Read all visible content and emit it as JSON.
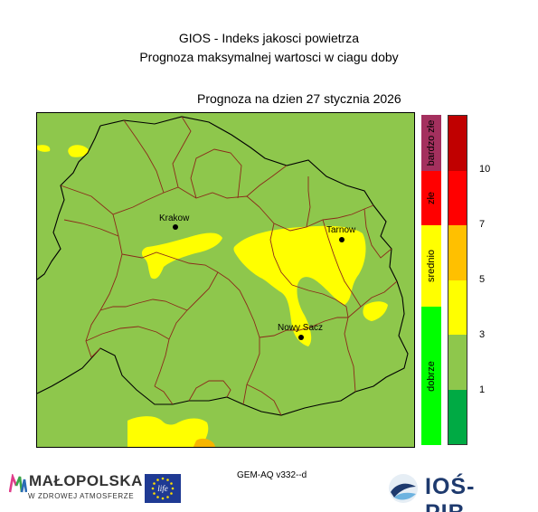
{
  "header": {
    "title": "GIOS - Indeks jakosci powietrza",
    "subtitle": "Prognoza maksymalnej wartosci w ciagu doby",
    "date_label": "Prognoza na dzien  27 stycznia 2026"
  },
  "map": {
    "cities": [
      {
        "name": "Krakow"
      },
      {
        "name": "Tarnow"
      },
      {
        "name": "Nowy Sacz"
      }
    ],
    "colors": {
      "good": "#8ec74c",
      "moderate": "#ffff00",
      "poor": "#f7b500",
      "border_region": "#000000",
      "border_district": "#8b2a1a"
    }
  },
  "legend": {
    "categories": [
      {
        "label": "bardzo złe",
        "color": "#a4305e"
      },
      {
        "label": "złe",
        "color": "#ff0000"
      },
      {
        "label": "srednio",
        "color": "#ffff00"
      },
      {
        "label": "dobrze",
        "color": "#00ff00"
      }
    ],
    "scale": [
      {
        "color": "#c00000"
      },
      {
        "color": "#ff0000"
      },
      {
        "color": "#ffc000"
      },
      {
        "color": "#ffff00"
      },
      {
        "color": "#8ec74c"
      },
      {
        "color": "#00aa44"
      }
    ],
    "ticks": [
      "10",
      "7",
      "5",
      "3",
      "1"
    ]
  },
  "footer": {
    "model": "GEM-AQ v332--d",
    "malopolska_name": "MAŁOPOLSKA",
    "malopolska_slogan": "W ZDROWEJ ATMOSFERZE",
    "eu_logo_text": "life",
    "ios_name": "IOŚ-PIB"
  }
}
